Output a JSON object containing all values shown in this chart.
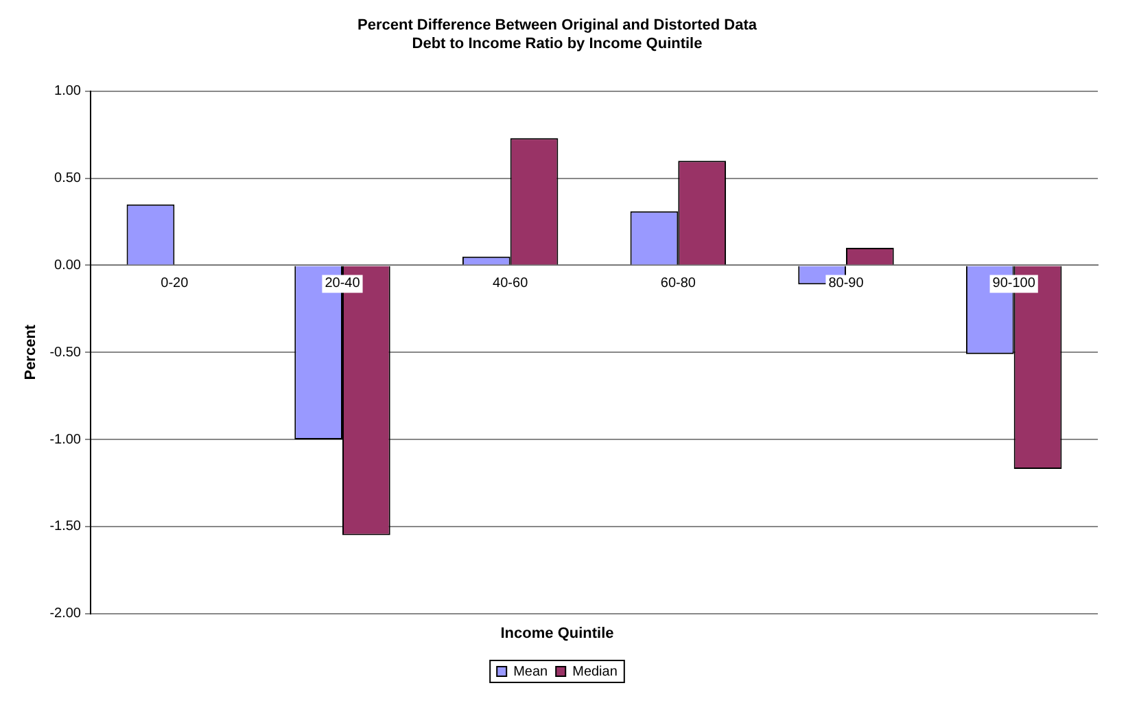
{
  "chart_data": {
    "type": "bar",
    "title": [
      "Percent Difference Between Original and Distorted Data",
      "Debt to Income Ratio by Income Quintile"
    ],
    "xlabel": "Income Quintile",
    "ylabel": "Percent",
    "categories": [
      "0-20",
      "20-40",
      "40-60",
      "60-80",
      "80-90",
      "90-100"
    ],
    "series": [
      {
        "name": "Mean",
        "color": "#9999ff",
        "values": [
          0.35,
          -1.0,
          0.05,
          0.31,
          -0.11,
          -0.51
        ]
      },
      {
        "name": "Median",
        "color": "#993366",
        "values": [
          0,
          -1.55,
          0.73,
          0.6,
          0.1,
          -1.17
        ]
      }
    ],
    "ylim": [
      -2,
      1
    ],
    "yticks": [
      {
        "value": 1,
        "label": "1.00"
      },
      {
        "value": 0.5,
        "label": "0.50"
      },
      {
        "value": 0,
        "label": "0.00"
      },
      {
        "value": -0.5,
        "label": "-0.50"
      },
      {
        "value": -1,
        "label": "-1.00"
      },
      {
        "value": -1.5,
        "label": "-1.50"
      },
      {
        "value": -2,
        "label": "-2.00"
      }
    ],
    "grid": "y",
    "legend": "bottom"
  }
}
